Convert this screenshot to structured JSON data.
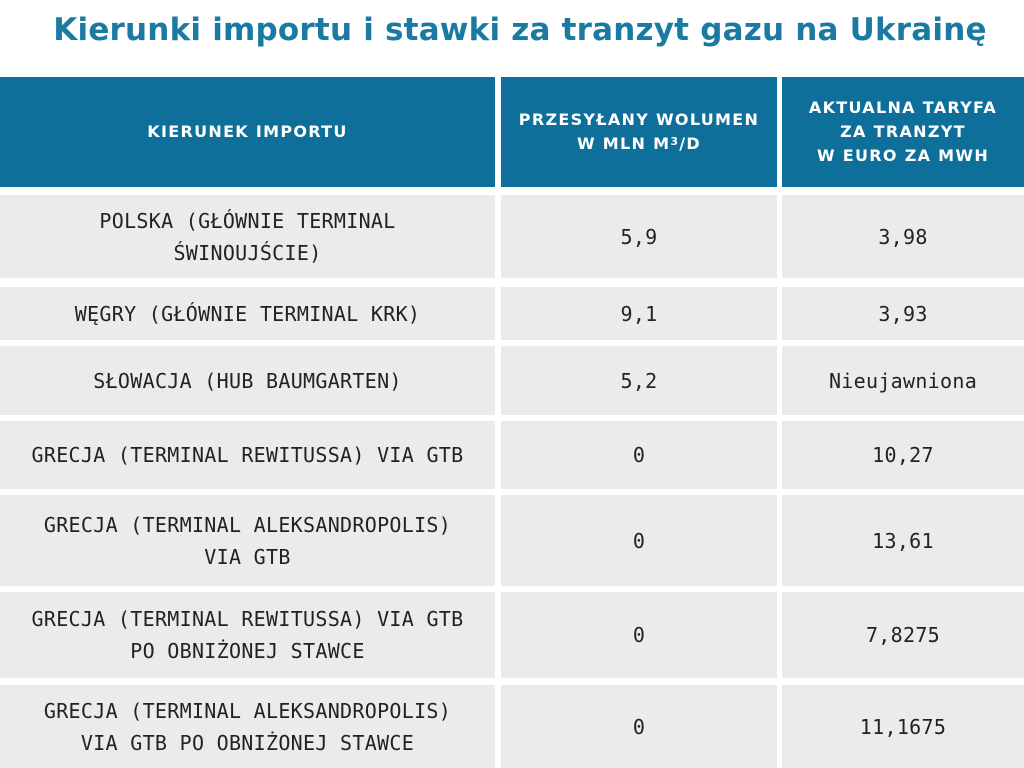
{
  "title": "Kierunki importu i stawki za tranzyt gazu na Ukrainę",
  "table": {
    "headers": {
      "direction": "KIERUNEK IMPORTU",
      "volume_line1": "PRZESYŁANY WOLUMEN",
      "volume_line2_prefix": "W MLN M",
      "volume_line2_sup": "3",
      "volume_line2_suffix": "/D",
      "tariff_line1": "AKTUALNA TARYFA",
      "tariff_line2": "ZA TRANZYT",
      "tariff_line3": "W EURO ZA MWH"
    },
    "rows": [
      {
        "direction": [
          "POLSKA (GŁÓWNIE TERMINAL",
          "ŚWINOUJŚCIE)"
        ],
        "volume": "5,9",
        "tariff": "3,98"
      },
      {
        "direction": [
          "WĘGRY (GŁÓWNIE TERMINAL KRK)"
        ],
        "volume": "9,1",
        "tariff": "3,93"
      },
      {
        "direction": [
          "SŁOWACJA (HUB BAUMGARTEN)"
        ],
        "volume": "5,2",
        "tariff": "Nieujawniona"
      },
      {
        "direction": [
          "GRECJA (TERMINAL REWITUSSA) VIA GTB"
        ],
        "volume": "0",
        "tariff": "10,27"
      },
      {
        "direction": [
          "GRECJA (TERMINAL ALEKSANDROPOLIS)",
          "VIA GTB"
        ],
        "volume": "0",
        "tariff": "13,61"
      },
      {
        "direction": [
          "GRECJA (TERMINAL REWITUSSA) VIA GTB",
          "PO OBNIŻONEJ STAWCE"
        ],
        "volume": "0",
        "tariff": "7,8275"
      },
      {
        "direction": [
          "GRECJA (TERMINAL ALEKSANDROPOLIS)",
          "VIA GTB PO OBNIŻONEJ STAWCE"
        ],
        "volume": "0",
        "tariff": "11,1675"
      }
    ]
  },
  "colors": {
    "title": "#1a7aa2",
    "header_bg": "#0e6f9a",
    "header_text": "#ffffff",
    "row_bg": "#ebebeb",
    "row_text": "#222222"
  }
}
